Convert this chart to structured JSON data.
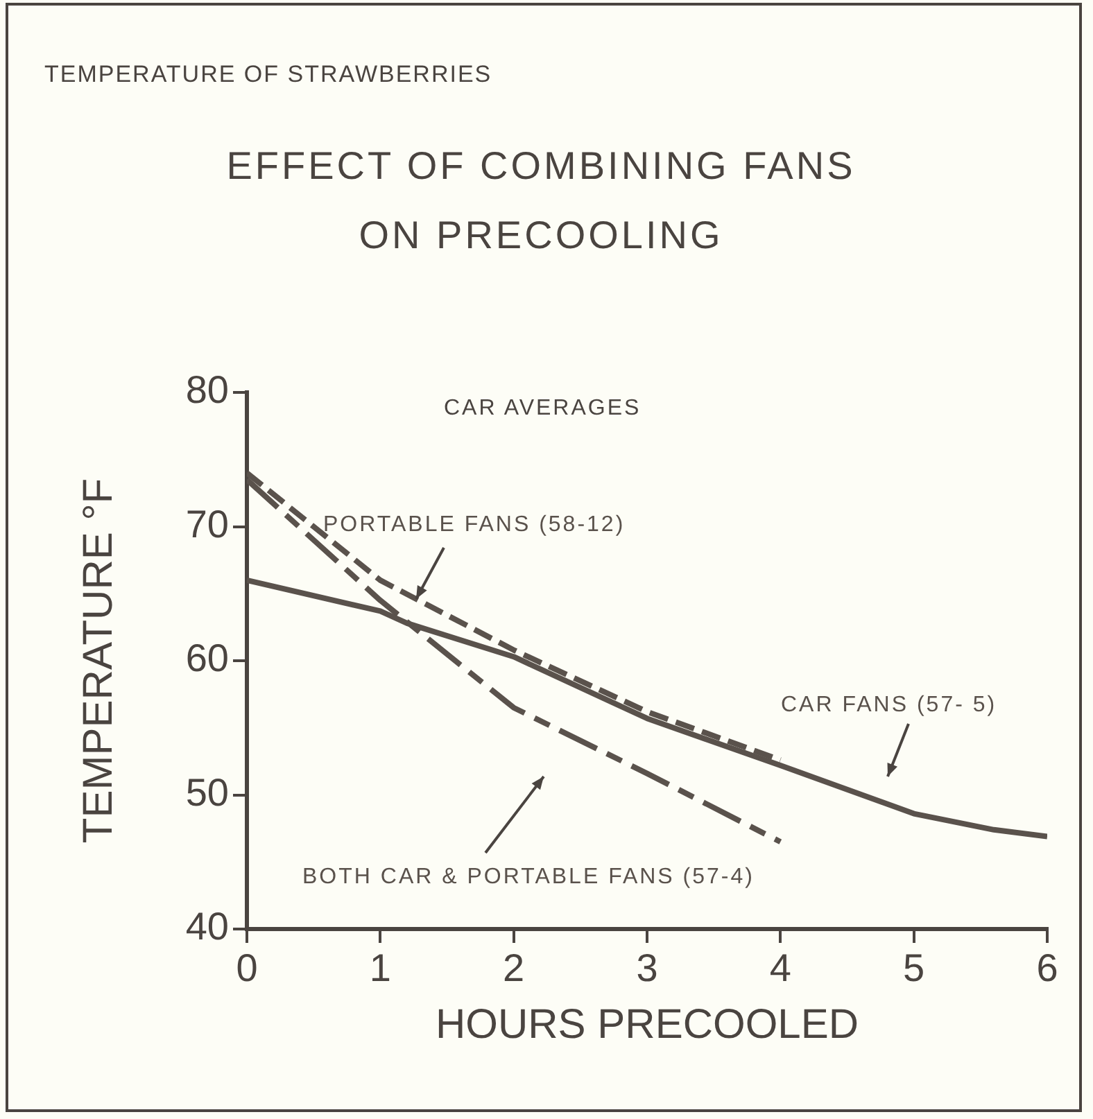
{
  "chart_data": {
    "type": "line",
    "title": "EFFECT OF COMBINING FANS ON PRECOOLING",
    "subtitle": "TEMPERATURE OF STRAWBERRIES",
    "xlabel": "HOURS PRECOOLED",
    "ylabel": "TEMPERATURE °F",
    "annotations": [
      "CAR AVERAGES"
    ],
    "xlim": [
      0,
      6
    ],
    "xticks": [
      0,
      1,
      2,
      3,
      4,
      5,
      6
    ],
    "ylim": [
      40,
      80
    ],
    "yticks": [
      40,
      50,
      60,
      70,
      80
    ],
    "grid": false,
    "legend": false,
    "marker": "none",
    "series": [
      {
        "name": "CAR FANS (57- 5)",
        "color": "#5a524c",
        "line_style": "solid",
        "x": [
          0,
          1,
          1.2,
          2,
          3,
          4,
          5,
          5.6,
          6
        ],
        "values": [
          66,
          63.7,
          62.8,
          60.3,
          55.7,
          52.2,
          48.6,
          47.4,
          46.9
        ]
      },
      {
        "name": "PORTABLE FANS (58-12)",
        "color": "#5a524c",
        "line_style": "dashed",
        "x": [
          0,
          1,
          2,
          3,
          4
        ],
        "values": [
          74,
          66,
          60.8,
          56.2,
          52.6
        ]
      },
      {
        "name": "BOTH CAR & PORTABLE FANS (57-4)",
        "color": "#5a524c",
        "line_style": "dashed",
        "x": [
          0,
          1,
          2,
          3,
          4
        ],
        "values": [
          73.5,
          64.5,
          56.5,
          51.6,
          46.5
        ]
      }
    ]
  }
}
